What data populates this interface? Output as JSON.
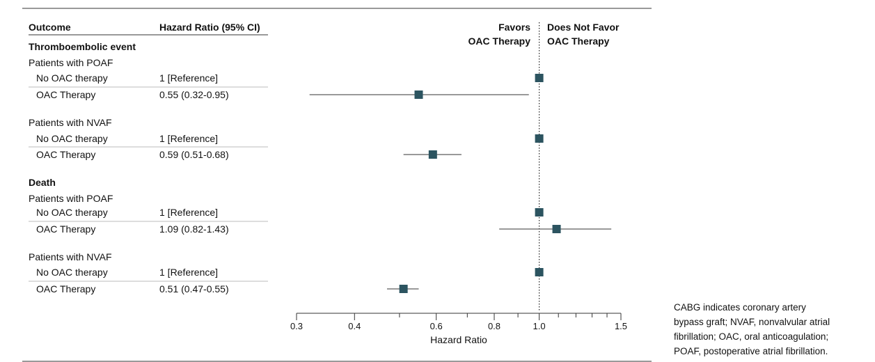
{
  "headers": {
    "outcome": "Outcome",
    "hr": "Hazard Ratio (95% CI)",
    "favors_line1": "Favors",
    "favors_line2": "OAC Therapy",
    "not_favor_line1": "Does Not Favor",
    "not_favor_line2": "OAC Therapy"
  },
  "rows": [
    {
      "kind": "section",
      "text": "Thromboembolic event"
    },
    {
      "kind": "group",
      "text": "Patients with POAF"
    },
    {
      "kind": "item",
      "label": "No OAC therapy",
      "hr_text": "1 [Reference]",
      "hr": 1.0,
      "lo": null,
      "hi": null
    },
    {
      "kind": "item",
      "label": "OAC Therapy",
      "hr_text": "0.55 (0.32-0.95)",
      "hr": 0.55,
      "lo": 0.32,
      "hi": 0.95
    },
    {
      "kind": "group",
      "text": "Patients with NVAF"
    },
    {
      "kind": "item",
      "label": "No OAC therapy",
      "hr_text": "1 [Reference]",
      "hr": 1.0,
      "lo": null,
      "hi": null
    },
    {
      "kind": "item",
      "label": "OAC Therapy",
      "hr_text": "0.59 (0.51-0.68)",
      "hr": 0.59,
      "lo": 0.51,
      "hi": 0.68
    },
    {
      "kind": "section",
      "text": "Death"
    },
    {
      "kind": "group",
      "text": "Patients with POAF"
    },
    {
      "kind": "item",
      "label": "No OAC therapy",
      "hr_text": "1 [Reference]",
      "hr": 1.0,
      "lo": null,
      "hi": null
    },
    {
      "kind": "item",
      "label": "OAC Therapy",
      "hr_text": "1.09 (0.82-1.43)",
      "hr": 1.09,
      "lo": 0.82,
      "hi": 1.43
    },
    {
      "kind": "group",
      "text": "Patients with NVAF"
    },
    {
      "kind": "item",
      "label": "No OAC therapy",
      "hr_text": "1 [Reference]",
      "hr": 1.0,
      "lo": null,
      "hi": null
    },
    {
      "kind": "item",
      "label": "OAC Therapy",
      "hr_text": "0.51 (0.47-0.55)",
      "hr": 0.51,
      "lo": 0.47,
      "hi": 0.55
    }
  ],
  "caption": [
    "CABG indicates coronary artery",
    "bypass graft; NVAF, nonvalvular atrial",
    "fibrillation; OAC, oral anticoagulation;",
    "POAF, postoperative atrial fibrillation."
  ],
  "chart_data": {
    "type": "scatter",
    "scale": "log",
    "xlabel": "Hazard Ratio",
    "xlim": [
      0.3,
      1.5
    ],
    "xticks": [
      0.3,
      0.4,
      0.6,
      0.8,
      1.0,
      1.5
    ],
    "xtick_labels": [
      "0.3",
      "0.4",
      "0.6",
      "0.8",
      "1.0",
      "1.5"
    ],
    "reference_line": 1.0,
    "marker_color": "#2c5460",
    "line_color": "#333333",
    "series": [
      {
        "outcome": "Thromboembolic event",
        "group": "Patients with POAF",
        "label": "No OAC therapy",
        "hr": 1.0
      },
      {
        "outcome": "Thromboembolic event",
        "group": "Patients with POAF",
        "label": "OAC Therapy",
        "hr": 0.55,
        "ci": [
          0.32,
          0.95
        ]
      },
      {
        "outcome": "Thromboembolic event",
        "group": "Patients with NVAF",
        "label": "No OAC therapy",
        "hr": 1.0
      },
      {
        "outcome": "Thromboembolic event",
        "group": "Patients with NVAF",
        "label": "OAC Therapy",
        "hr": 0.59,
        "ci": [
          0.51,
          0.68
        ]
      },
      {
        "outcome": "Death",
        "group": "Patients with POAF",
        "label": "No OAC therapy",
        "hr": 1.0
      },
      {
        "outcome": "Death",
        "group": "Patients with POAF",
        "label": "OAC Therapy",
        "hr": 1.09,
        "ci": [
          0.82,
          1.43
        ]
      },
      {
        "outcome": "Death",
        "group": "Patients with NVAF",
        "label": "No OAC therapy",
        "hr": 1.0
      },
      {
        "outcome": "Death",
        "group": "Patients with NVAF",
        "label": "OAC Therapy",
        "hr": 0.51,
        "ci": [
          0.47,
          0.55
        ]
      }
    ]
  }
}
